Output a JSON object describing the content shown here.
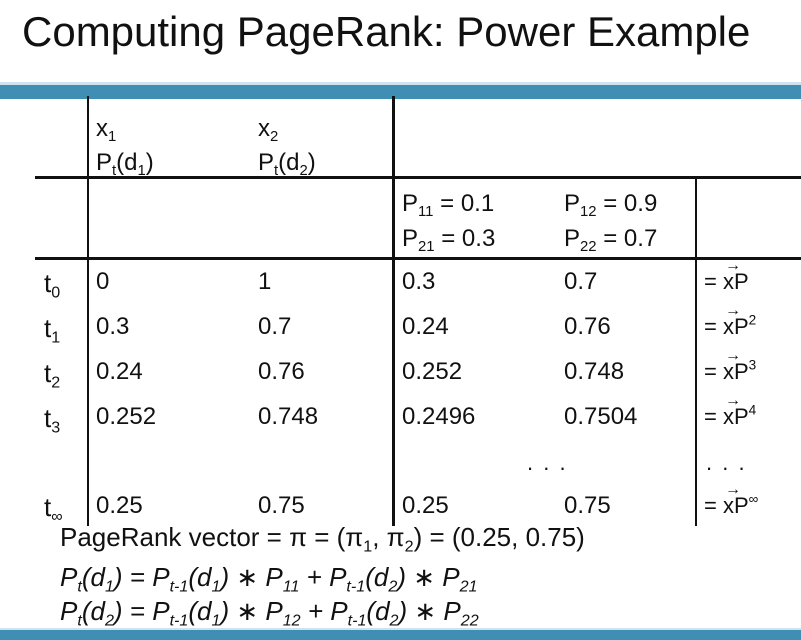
{
  "title": "Computing PageRank: Power Example",
  "header": {
    "x1": "x",
    "x1_sub": "1",
    "p1_a": "P",
    "p1_t": "t",
    "p1_b": "(d",
    "p1_d": "1",
    "p1_c": ")",
    "x2": "x",
    "x2_sub": "2",
    "p2_a": "P",
    "p2_t": "t",
    "p2_b": "(d",
    "p2_d": "2",
    "p2_c": ")"
  },
  "matrix": {
    "p11": "0.1",
    "p12": "0.9",
    "p21": "0.3",
    "p22": "0.7"
  },
  "rows": [
    {
      "label": "t",
      "sub": "0",
      "x1": "0",
      "x2": "1",
      "p1": "0.3",
      "p2": "0.7",
      "eq": "= ",
      "vec": "x",
      "tail": "P",
      "exp": ""
    },
    {
      "label": "t",
      "sub": "1",
      "x1": "0.3",
      "x2": "0.7",
      "p1": "0.24",
      "p2": "0.76",
      "eq": "= ",
      "vec": "x",
      "tail": "P",
      "exp": "2"
    },
    {
      "label": "t",
      "sub": "2",
      "x1": "0.24",
      "x2": "0.76",
      "p1": "0.252",
      "p2": "0.748",
      "eq": "= ",
      "vec": "x",
      "tail": "P",
      "exp": "3"
    },
    {
      "label": "t",
      "sub": "3",
      "x1": "0.252",
      "x2": "0.748",
      "p1": "0.2496",
      "p2": "0.7504",
      "eq": "= ",
      "vec": "x",
      "tail": "P",
      "exp": "4"
    },
    {
      "label": "t",
      "sub": "∞",
      "x1": "0.25",
      "x2": "0.75",
      "p1": "0.25",
      "p2": "0.75",
      "eq": "= ",
      "vec": "x",
      "tail": "P",
      "exp": "∞"
    }
  ],
  "dots_mid": ". . .",
  "dots_right": ". . .",
  "pagerank_line": {
    "a": "PageRank vector = π = (π",
    "s1": "1",
    "b": ", π",
    "s2": "2",
    "c": ") = (0.25, 0.75)"
  },
  "formula1": {
    "a": "P",
    "b": "t",
    "c": "(d",
    "d": "1",
    "e": ") = P",
    "f": "t-1",
    "g": "(d",
    "h": "1",
    "i": ") ∗ P",
    "j": "11",
    "k": " + P",
    "l": "t-1",
    "m": "(d",
    "n": "2",
    "o": ") ∗ P",
    "p": "21"
  },
  "formula2": {
    "a": "P",
    "b": "t",
    "c": "(d",
    "d": "2",
    "e": ") = P",
    "f": "t-1",
    "g": "(d",
    "h": "1",
    "i": ") ∗ P",
    "j": "12",
    "k": " + P",
    "l": "t-1",
    "m": "(d",
    "n": "2",
    "o": ") ∗ P",
    "p": "22"
  }
}
